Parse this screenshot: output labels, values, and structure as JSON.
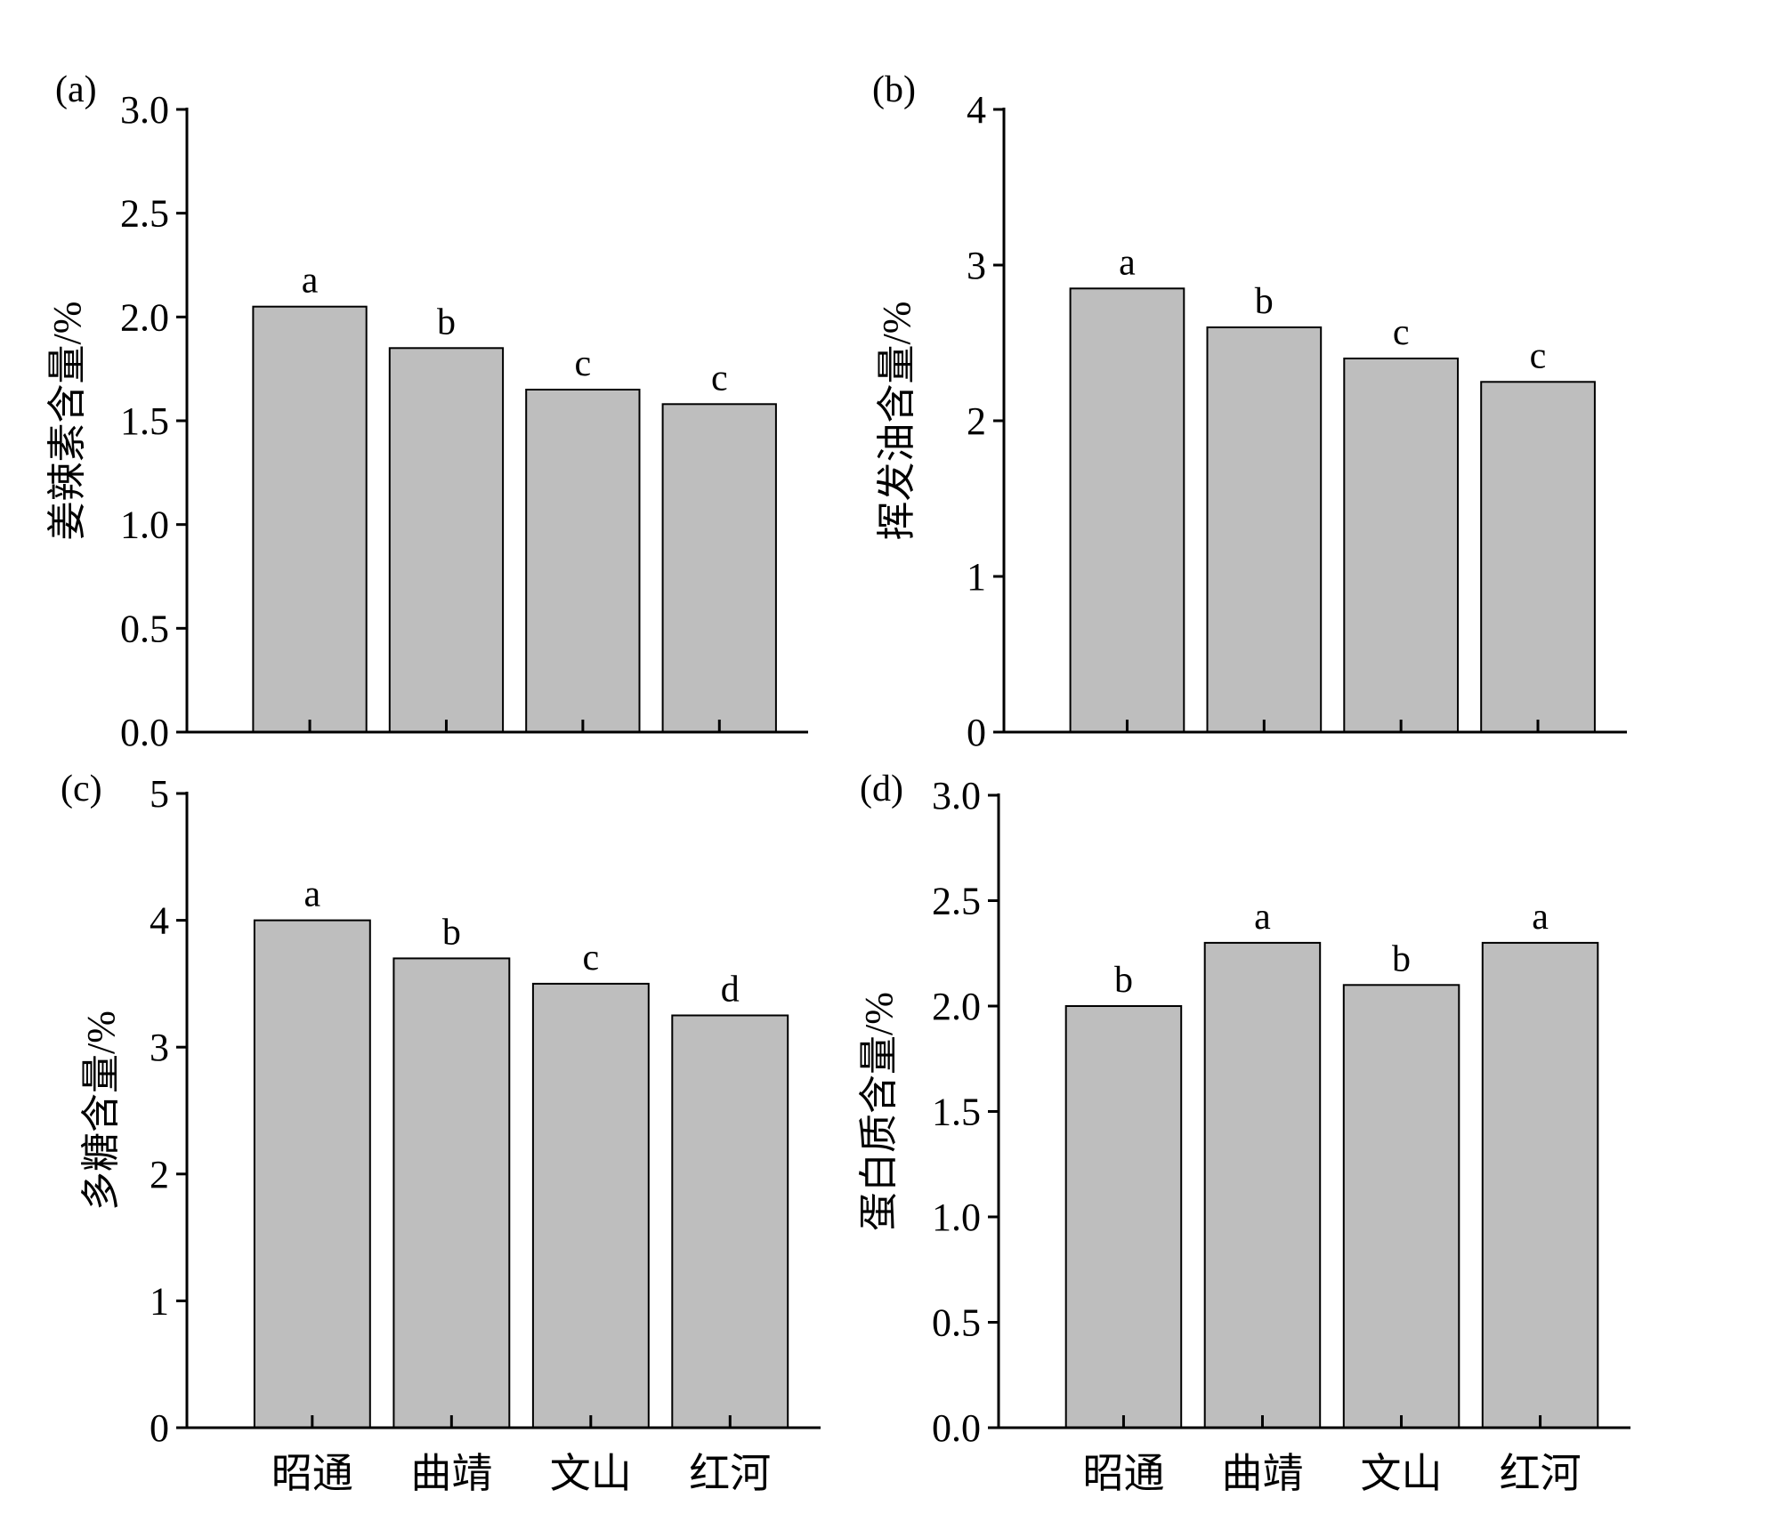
{
  "chart_data": [
    {
      "type": "bar",
      "panel_label": "(a)",
      "categories": [
        "昭通",
        "曲靖",
        "文山",
        "红河"
      ],
      "show_category_labels": false,
      "values": [
        2.05,
        1.85,
        1.65,
        1.58
      ],
      "significance": [
        "a",
        "b",
        "c",
        "c"
      ],
      "ylabel": "姜辣素含量/%",
      "ylim": [
        0,
        3.0
      ],
      "yticks": [
        "0.0",
        "0.5",
        "1.0",
        "1.5",
        "2.0",
        "2.5",
        "3.0"
      ],
      "bar_color": "#bebebe"
    },
    {
      "type": "bar",
      "panel_label": "(b)",
      "categories": [
        "昭通",
        "曲靖",
        "文山",
        "红河"
      ],
      "show_category_labels": false,
      "values": [
        2.85,
        2.6,
        2.4,
        2.25
      ],
      "significance": [
        "a",
        "b",
        "c",
        "c"
      ],
      "ylabel": "挥发油含量/%",
      "ylim": [
        0,
        4
      ],
      "yticks": [
        "0",
        "1",
        "2",
        "3",
        "4"
      ],
      "bar_color": "#bebebe"
    },
    {
      "type": "bar",
      "panel_label": "(c)",
      "categories": [
        "昭通",
        "曲靖",
        "文山",
        "红河"
      ],
      "show_category_labels": true,
      "values": [
        4.0,
        3.7,
        3.5,
        3.25
      ],
      "significance": [
        "a",
        "b",
        "c",
        "d"
      ],
      "ylabel": "多糖含量/%",
      "ylim": [
        0,
        5
      ],
      "yticks": [
        "0",
        "1",
        "2",
        "3",
        "4",
        "5"
      ],
      "bar_color": "#bebebe"
    },
    {
      "type": "bar",
      "panel_label": "(d)",
      "categories": [
        "昭通",
        "曲靖",
        "文山",
        "红河"
      ],
      "show_category_labels": true,
      "values": [
        2.0,
        2.3,
        2.1,
        2.3
      ],
      "significance": [
        "b",
        "a",
        "b",
        "a"
      ],
      "ylabel": "蛋白质含量/%",
      "ylim": [
        0,
        3.0
      ],
      "yticks": [
        "0.0",
        "0.5",
        "1.0",
        "1.5",
        "2.0",
        "2.5",
        "3.0"
      ],
      "bar_color": "#bebebe"
    }
  ]
}
